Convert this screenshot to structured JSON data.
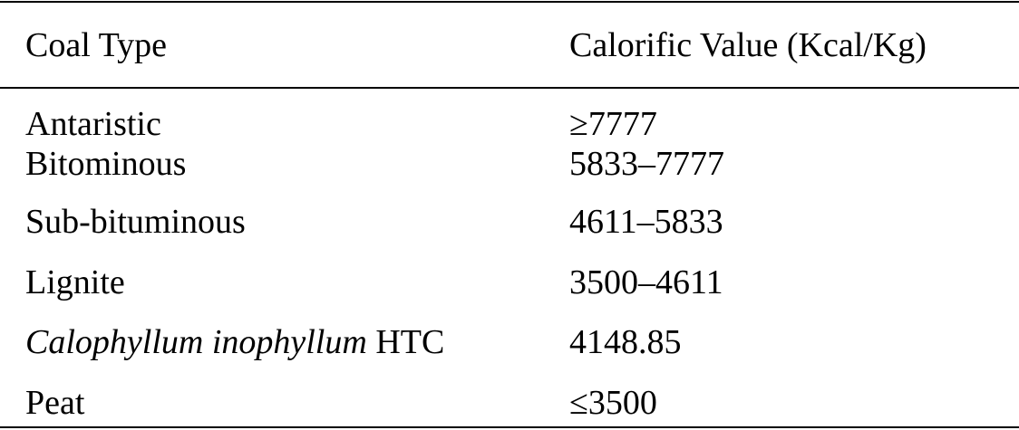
{
  "table": {
    "header": [
      "Coal Type",
      "Calorific Value (Kcal/Kg)"
    ],
    "rows": [
      [
        "Antaristic",
        "≥7777"
      ],
      [
        "Bitominous",
        "5833–7777"
      ],
      [
        "Sub-bituminous",
        "4611–5833"
      ],
      [
        "Lignite",
        "3500–4611"
      ],
      [
        {
          "italic": "Calophyllum inophyllum",
          "roman": "HTC"
        },
        "4148.85"
      ],
      [
        "Peat",
        "≤3500"
      ]
    ]
  }
}
